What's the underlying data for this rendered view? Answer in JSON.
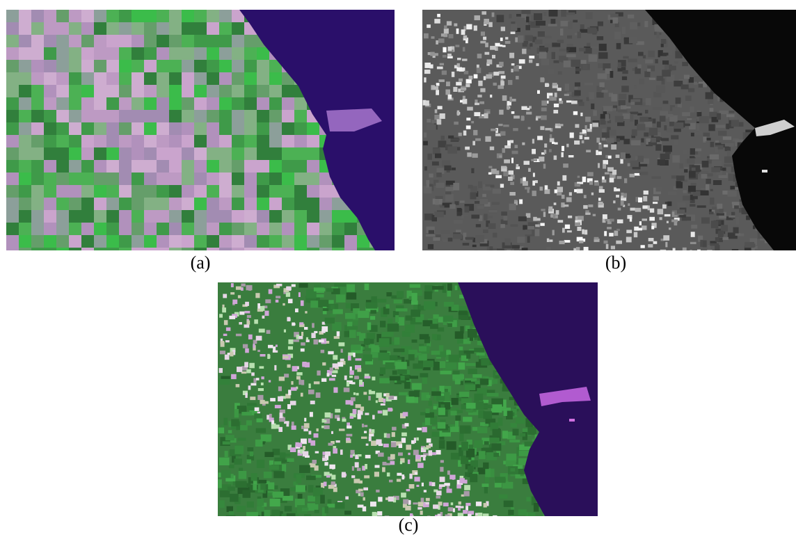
{
  "figure": {
    "panels": [
      {
        "id": "a",
        "caption": "(a)",
        "kind": "low-resolution multispectral image",
        "colors": {
          "land": "#3f9a49",
          "urban": "#d49ad8",
          "water": "#2a0f6a"
        }
      },
      {
        "id": "b",
        "caption": "(b)",
        "kind": "high-resolution panchromatic image",
        "colors": {
          "land": "#5a5a5a",
          "urban": "#d8d8d8",
          "water": "#080808"
        }
      },
      {
        "id": "c",
        "caption": "(c)",
        "kind": "fused pan-sharpened image",
        "colors": {
          "land": "#3a7d3e",
          "urban": "#d8c6dc",
          "water": "#2a0f5a"
        }
      }
    ]
  }
}
